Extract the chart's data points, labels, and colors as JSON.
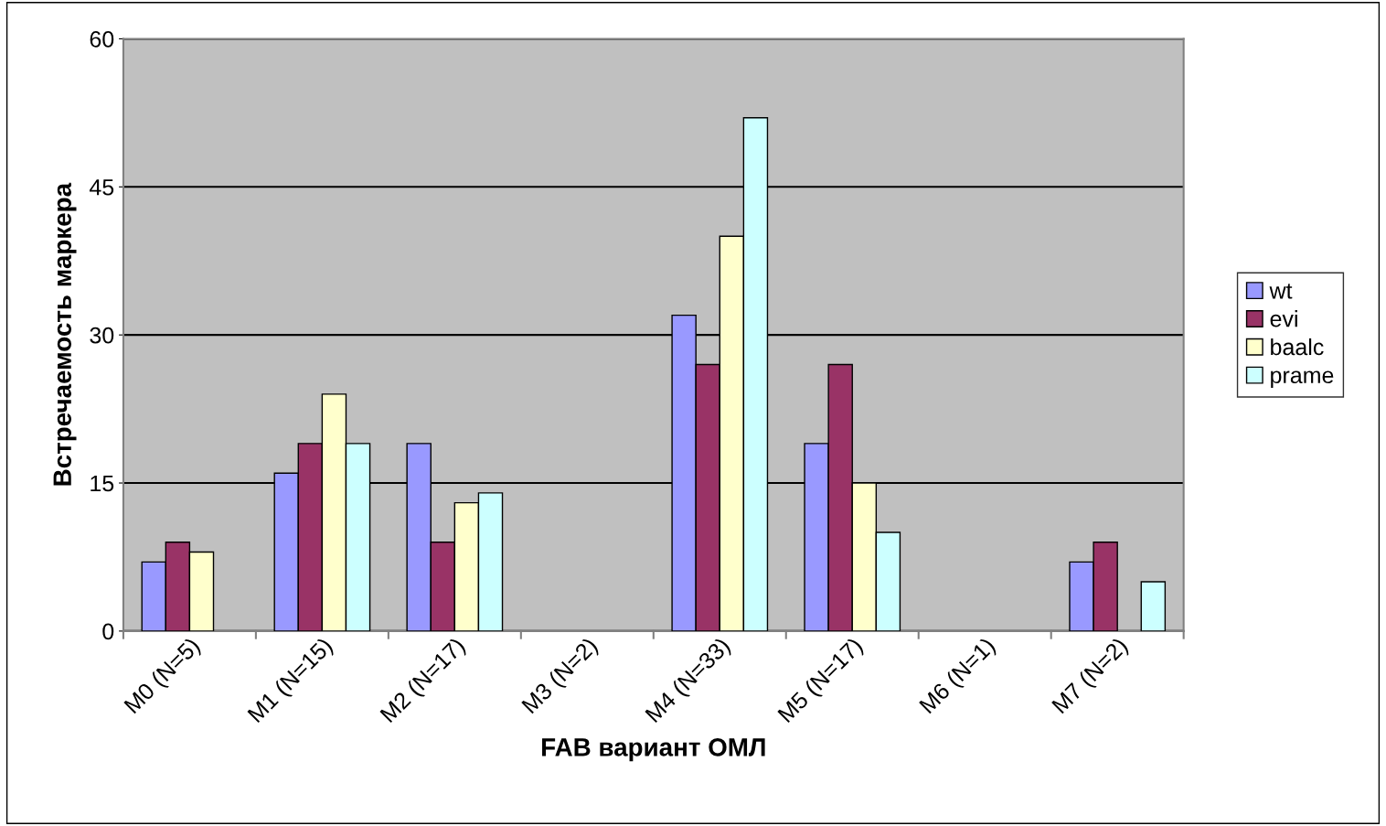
{
  "chart_data": {
    "type": "bar",
    "xlabel": "FAB вариант ОМЛ",
    "ylabel": "Встречаемость маркера",
    "categories": [
      "M0 (N=5)",
      "M1 (N=15)",
      "M2 (N=17)",
      "M3 (N=2)",
      "M4 (N=33)",
      "M5 (N=17)",
      "M6 (N=1)",
      "M7 (N=2)"
    ],
    "series": [
      {
        "name": "wt",
        "color": "#9999ff",
        "values": [
          7,
          16,
          19,
          null,
          32,
          19,
          null,
          7
        ]
      },
      {
        "name": "evi",
        "color": "#993366",
        "values": [
          9,
          19,
          9,
          null,
          27,
          27,
          null,
          9
        ]
      },
      {
        "name": "baalc",
        "color": "#ffffcc",
        "values": [
          8,
          24,
          13,
          null,
          40,
          15,
          null,
          null
        ]
      },
      {
        "name": "prame",
        "color": "#ccffff",
        "values": [
          null,
          19,
          14,
          null,
          52,
          10,
          null,
          5
        ]
      }
    ],
    "ylim": [
      0,
      60
    ],
    "yticks": [
      0,
      15,
      30,
      45,
      60
    ],
    "grid": "y",
    "legend": "right"
  }
}
